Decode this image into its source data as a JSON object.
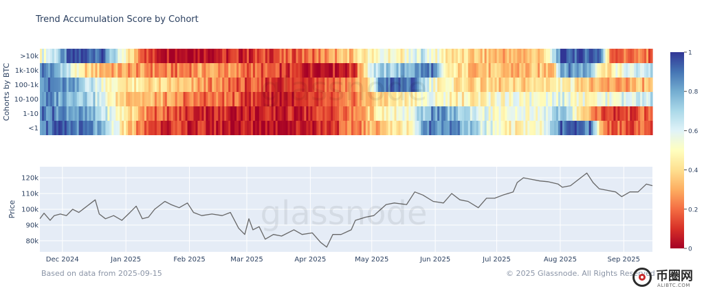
{
  "title": "Trend Accumulation Score by Cohort",
  "footer": {
    "source": "Based on data from 2025-09-15",
    "copyright": "© 2025 Glassnode. All Rights Reserved"
  },
  "watermark": {
    "brand": "glassnode",
    "badge_title": "币圈网",
    "badge_sub": "ALIBTC.COM"
  },
  "colors": {
    "plot_bg": "#e5ecf6",
    "price_line": "#666666",
    "grid": "#ffffff"
  },
  "chart_data": [
    {
      "type": "heatmap",
      "title": "Trend Accumulation Score by Cohort",
      "ylabel": "Cohorts by BTC",
      "rows": [
        ">10k",
        "1k-10k",
        "100-1k",
        "10-100",
        "1-10",
        "<1"
      ],
      "x_start": "2024-11-20",
      "x_end": "2025-09-15",
      "colorscale": "RdYlBu",
      "zlim": [
        0,
        1
      ],
      "colorbar_ticks": [
        0,
        0.2,
        0.4,
        0.6,
        0.8,
        1
      ],
      "segments": [
        {
          "row": ">10k",
          "anchors": [
            [
              "2024-11-20",
              0.55
            ],
            [
              "2024-11-28",
              0.7
            ],
            [
              "2024-12-05",
              0.95
            ],
            [
              "2024-12-20",
              0.95
            ],
            [
              "2024-12-28",
              0.55
            ],
            [
              "2025-01-05",
              0.35
            ],
            [
              "2025-01-12",
              0.1
            ],
            [
              "2025-02-01",
              0.05
            ],
            [
              "2025-03-01",
              0.1
            ],
            [
              "2025-04-01",
              0.2
            ],
            [
              "2025-04-15",
              0.3
            ],
            [
              "2025-04-25",
              0.4
            ],
            [
              "2025-05-05",
              0.55
            ],
            [
              "2025-05-15",
              0.45
            ],
            [
              "2025-05-25",
              0.65
            ],
            [
              "2025-06-05",
              0.45
            ],
            [
              "2025-06-20",
              0.35
            ],
            [
              "2025-07-10",
              0.3
            ],
            [
              "2025-07-25",
              0.4
            ],
            [
              "2025-08-01",
              0.95
            ],
            [
              "2025-08-20",
              0.95
            ],
            [
              "2025-08-25",
              0.2
            ],
            [
              "2025-09-15",
              0.2
            ]
          ]
        },
        {
          "row": "1k-10k",
          "anchors": [
            [
              "2024-11-20",
              0.9
            ],
            [
              "2024-11-30",
              0.75
            ],
            [
              "2024-12-10",
              0.4
            ],
            [
              "2024-12-25",
              0.3
            ],
            [
              "2025-01-10",
              0.25
            ],
            [
              "2025-01-25",
              0.2
            ],
            [
              "2025-02-10",
              0.3
            ],
            [
              "2025-03-01",
              0.2
            ],
            [
              "2025-03-20",
              0.1
            ],
            [
              "2025-04-05",
              0.05
            ],
            [
              "2025-04-22",
              0.1
            ],
            [
              "2025-04-30",
              0.65
            ],
            [
              "2025-05-15",
              0.75
            ],
            [
              "2025-05-30",
              0.9
            ],
            [
              "2025-06-05",
              0.45
            ],
            [
              "2025-06-20",
              0.35
            ],
            [
              "2025-07-10",
              0.3
            ],
            [
              "2025-07-28",
              0.35
            ],
            [
              "2025-08-01",
              0.85
            ],
            [
              "2025-08-15",
              0.8
            ],
            [
              "2025-08-22",
              0.4
            ],
            [
              "2025-09-01",
              0.55
            ],
            [
              "2025-09-15",
              0.7
            ]
          ]
        },
        {
          "row": "100-1k",
          "anchors": [
            [
              "2024-11-20",
              0.9
            ],
            [
              "2024-12-05",
              0.8
            ],
            [
              "2024-12-15",
              0.65
            ],
            [
              "2024-12-28",
              0.45
            ],
            [
              "2025-01-10",
              0.4
            ],
            [
              "2025-01-25",
              0.35
            ],
            [
              "2025-02-10",
              0.25
            ],
            [
              "2025-03-01",
              0.15
            ],
            [
              "2025-03-20",
              0.1
            ],
            [
              "2025-04-10",
              0.2
            ],
            [
              "2025-04-28",
              0.3
            ],
            [
              "2025-05-05",
              0.9
            ],
            [
              "2025-05-20",
              0.9
            ],
            [
              "2025-06-01",
              0.5
            ],
            [
              "2025-06-15",
              0.4
            ],
            [
              "2025-07-05",
              0.35
            ],
            [
              "2025-07-20",
              0.4
            ],
            [
              "2025-08-05",
              0.5
            ],
            [
              "2025-08-20",
              0.25
            ],
            [
              "2025-09-05",
              0.3
            ],
            [
              "2025-09-15",
              0.35
            ]
          ]
        },
        {
          "row": "10-100",
          "anchors": [
            [
              "2024-11-20",
              0.85
            ],
            [
              "2024-12-05",
              0.8
            ],
            [
              "2024-12-15",
              0.7
            ],
            [
              "2024-12-28",
              0.4
            ],
            [
              "2025-01-15",
              0.3
            ],
            [
              "2025-02-01",
              0.2
            ],
            [
              "2025-02-20",
              0.2
            ],
            [
              "2025-03-05",
              0.1
            ],
            [
              "2025-03-25",
              0.05
            ],
            [
              "2025-04-15",
              0.15
            ],
            [
              "2025-05-01",
              0.35
            ],
            [
              "2025-05-15",
              0.45
            ],
            [
              "2025-05-30",
              0.55
            ],
            [
              "2025-06-15",
              0.45
            ],
            [
              "2025-07-01",
              0.5
            ],
            [
              "2025-07-20",
              0.55
            ],
            [
              "2025-08-01",
              0.6
            ],
            [
              "2025-08-15",
              0.5
            ],
            [
              "2025-09-01",
              0.6
            ],
            [
              "2025-09-15",
              0.65
            ]
          ]
        },
        {
          "row": "1-10",
          "anchors": [
            [
              "2024-11-20",
              0.9
            ],
            [
              "2024-12-05",
              0.85
            ],
            [
              "2024-12-15",
              0.75
            ],
            [
              "2024-12-28",
              0.5
            ],
            [
              "2025-01-15",
              0.2
            ],
            [
              "2025-02-01",
              0.1
            ],
            [
              "2025-02-20",
              0.08
            ],
            [
              "2025-03-10",
              0.05
            ],
            [
              "2025-04-01",
              0.1
            ],
            [
              "2025-04-20",
              0.2
            ],
            [
              "2025-05-05",
              0.45
            ],
            [
              "2025-05-20",
              0.55
            ],
            [
              "2025-05-30",
              0.85
            ],
            [
              "2025-06-15",
              0.7
            ],
            [
              "2025-07-01",
              0.5
            ],
            [
              "2025-07-20",
              0.55
            ],
            [
              "2025-08-01",
              0.75
            ],
            [
              "2025-08-15",
              0.3
            ],
            [
              "2025-08-25",
              0.1
            ],
            [
              "2025-09-05",
              0.15
            ],
            [
              "2025-09-15",
              0.2
            ]
          ]
        },
        {
          "row": "<1",
          "anchors": [
            [
              "2024-11-20",
              0.9
            ],
            [
              "2024-12-05",
              0.9
            ],
            [
              "2024-12-15",
              0.85
            ],
            [
              "2024-12-28",
              0.5
            ],
            [
              "2025-01-10",
              0.15
            ],
            [
              "2025-02-01",
              0.08
            ],
            [
              "2025-03-01",
              0.05
            ],
            [
              "2025-03-25",
              0.05
            ],
            [
              "2025-04-15",
              0.15
            ],
            [
              "2025-05-05",
              0.35
            ],
            [
              "2025-05-20",
              0.5
            ],
            [
              "2025-05-28",
              0.9
            ],
            [
              "2025-06-10",
              0.85
            ],
            [
              "2025-06-25",
              0.6
            ],
            [
              "2025-07-10",
              0.45
            ],
            [
              "2025-07-25",
              0.55
            ],
            [
              "2025-08-01",
              0.9
            ],
            [
              "2025-08-15",
              0.9
            ],
            [
              "2025-08-22",
              0.2
            ],
            [
              "2025-09-15",
              0.15
            ]
          ]
        }
      ]
    },
    {
      "type": "line",
      "ylabel": "Price",
      "xlabel": "",
      "ylim": [
        73000,
        127000
      ],
      "yticks": [
        80000,
        90000,
        100000,
        110000,
        120000
      ],
      "ytick_labels": [
        "80k",
        "90k",
        "100k",
        "110k",
        "120k"
      ],
      "xticks": [
        "2024-12-01",
        "2025-01-01",
        "2025-02-01",
        "2025-03-01",
        "2025-04-01",
        "2025-05-01",
        "2025-06-01",
        "2025-07-01",
        "2025-08-01",
        "2025-09-01"
      ],
      "xtick_labels": [
        "Dec 2024",
        "Jan 2025",
        "Feb 2025",
        "Mar 2025",
        "Apr 2025",
        "May 2025",
        "Jun 2025",
        "Jul 2025",
        "Aug 2025",
        "Sep 2025"
      ],
      "series": [
        {
          "x": [
            "2024-11-20",
            "2024-11-22",
            "2024-11-25",
            "2024-11-27",
            "2024-11-30",
            "2024-12-03",
            "2024-12-06",
            "2024-12-09",
            "2024-12-12",
            "2024-12-15",
            "2024-12-17",
            "2024-12-19",
            "2024-12-22",
            "2024-12-26",
            "2024-12-30",
            "2025-01-03",
            "2025-01-06",
            "2025-01-09",
            "2025-01-12",
            "2025-01-15",
            "2025-01-20",
            "2025-01-23",
            "2025-01-27",
            "2025-01-31",
            "2025-02-03",
            "2025-02-07",
            "2025-02-12",
            "2025-02-17",
            "2025-02-21",
            "2025-02-25",
            "2025-02-28",
            "2025-03-02",
            "2025-03-04",
            "2025-03-07",
            "2025-03-10",
            "2025-03-14",
            "2025-03-18",
            "2025-03-24",
            "2025-03-28",
            "2025-04-02",
            "2025-04-06",
            "2025-04-09",
            "2025-04-12",
            "2025-04-16",
            "2025-04-21",
            "2025-04-23",
            "2025-04-28",
            "2025-05-02",
            "2025-05-08",
            "2025-05-12",
            "2025-05-18",
            "2025-05-22",
            "2025-05-26",
            "2025-05-31",
            "2025-06-05",
            "2025-06-09",
            "2025-06-13",
            "2025-06-17",
            "2025-06-22",
            "2025-06-26",
            "2025-06-30",
            "2025-07-04",
            "2025-07-09",
            "2025-07-11",
            "2025-07-14",
            "2025-07-18",
            "2025-07-22",
            "2025-07-26",
            "2025-07-31",
            "2025-08-02",
            "2025-08-06",
            "2025-08-10",
            "2025-08-14",
            "2025-08-17",
            "2025-08-20",
            "2025-08-24",
            "2025-08-28",
            "2025-08-31",
            "2025-09-04",
            "2025-09-08",
            "2025-09-12",
            "2025-09-15"
          ],
          "y": [
            94000,
            97500,
            93000,
            96000,
            97000,
            96000,
            100000,
            98000,
            101000,
            104000,
            106000,
            97000,
            94000,
            96000,
            93000,
            98000,
            102000,
            94000,
            95000,
            100000,
            105000,
            103000,
            101000,
            104000,
            98000,
            96000,
            97000,
            96000,
            98000,
            88000,
            84000,
            94000,
            87000,
            89000,
            81000,
            84000,
            83000,
            87000,
            84000,
            85000,
            79000,
            76000,
            84000,
            84000,
            87000,
            93000,
            95000,
            96000,
            103000,
            104000,
            103000,
            111000,
            109000,
            105000,
            104000,
            110000,
            106000,
            105000,
            101000,
            107000,
            107000,
            109000,
            111000,
            117000,
            120000,
            119000,
            118000,
            117500,
            116000,
            114000,
            115000,
            119000,
            123000,
            117000,
            113000,
            112000,
            111000,
            108000,
            111000,
            111000,
            116000,
            115000
          ]
        }
      ]
    }
  ]
}
